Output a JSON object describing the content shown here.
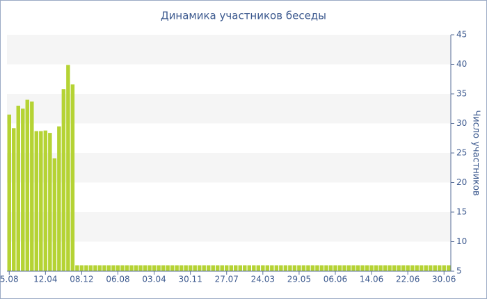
{
  "chart_data": {
    "type": "bar",
    "title": "Динамика участников беседы",
    "y_label": "Число участников",
    "categories": [
      "5.08",
      null,
      null,
      null,
      null,
      null,
      null,
      null,
      "12.04",
      null,
      null,
      null,
      null,
      null,
      null,
      null,
      "08.12",
      null,
      null,
      null,
      null,
      null,
      null,
      null,
      "06.08",
      null,
      null,
      null,
      null,
      null,
      null,
      null,
      "03.04",
      null,
      null,
      null,
      null,
      null,
      null,
      null,
      "30.11",
      null,
      null,
      null,
      null,
      null,
      null,
      null,
      "27.07",
      null,
      null,
      null,
      null,
      null,
      null,
      null,
      "24.03",
      null,
      null,
      null,
      null,
      null,
      null,
      null,
      "29.05",
      null,
      null,
      null,
      null,
      null,
      null,
      null,
      "06.06",
      null,
      null,
      null,
      null,
      null,
      null,
      null,
      "14.06",
      null,
      null,
      null,
      null,
      null,
      null,
      null,
      "22.06",
      null,
      null,
      null,
      null,
      null,
      null,
      null,
      "30.06",
      null
    ],
    "values": [
      31.5,
      29.2,
      33,
      32.5,
      34,
      33.7,
      28.7,
      28.7,
      28.8,
      28.4,
      24.1,
      29.5,
      35.8,
      39.9,
      36.6,
      6,
      6,
      6,
      6,
      6,
      6,
      6,
      6,
      6,
      6,
      6,
      6,
      6,
      6,
      6,
      6,
      6,
      6,
      6,
      6,
      6,
      6,
      6,
      6,
      6,
      6,
      6,
      6,
      6,
      6,
      6,
      6,
      6,
      6,
      6,
      6,
      6,
      6,
      6,
      6,
      6,
      6,
      6,
      6,
      6,
      6,
      6,
      6,
      6,
      6,
      6,
      6,
      6,
      6,
      6,
      6,
      6,
      6,
      6,
      6,
      6,
      6,
      6,
      6,
      6,
      6,
      6,
      6,
      6,
      6,
      6,
      6,
      6,
      6,
      6,
      6,
      6,
      6,
      6,
      6,
      6,
      6,
      6
    ],
    "color": "#b5d334",
    "ylim": [
      5,
      45
    ],
    "yticks": [
      5,
      10,
      15,
      20,
      25,
      30,
      35,
      40,
      45
    ],
    "grid": true,
    "y_axis_side": "right"
  }
}
